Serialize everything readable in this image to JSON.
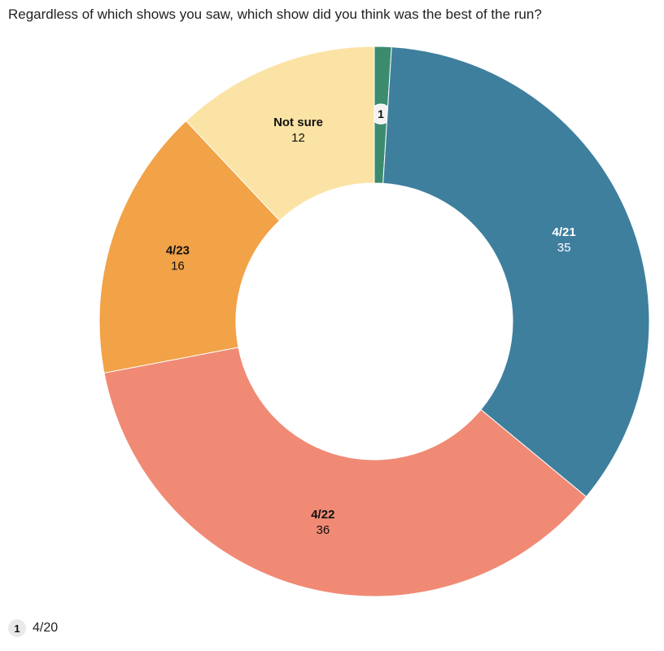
{
  "title": "Regardless of which shows you saw, which show did you think was the best of the run?",
  "chart_data": {
    "type": "pie",
    "donut": true,
    "title": "Regardless of which shows you saw, which show did you think was the best of the run?",
    "slices": [
      {
        "label": "4/20",
        "value": 1,
        "color": "#3b8c6e",
        "label_style": "footnote",
        "footnote_number": "1"
      },
      {
        "label": "4/21",
        "value": 35,
        "color": "#3f7f9e",
        "label_color": "#ffffff"
      },
      {
        "label": "4/22",
        "value": 36,
        "color": "#f08a74",
        "label_color": "#111111"
      },
      {
        "label": "4/23",
        "value": 16,
        "color": "#f2a247",
        "label_color": "#111111"
      },
      {
        "label": "Not sure",
        "value": 12,
        "color": "#fbe3a5",
        "label_color": "#111111"
      }
    ]
  },
  "footnotes": [
    {
      "number": "1",
      "text": "4/20"
    }
  ]
}
